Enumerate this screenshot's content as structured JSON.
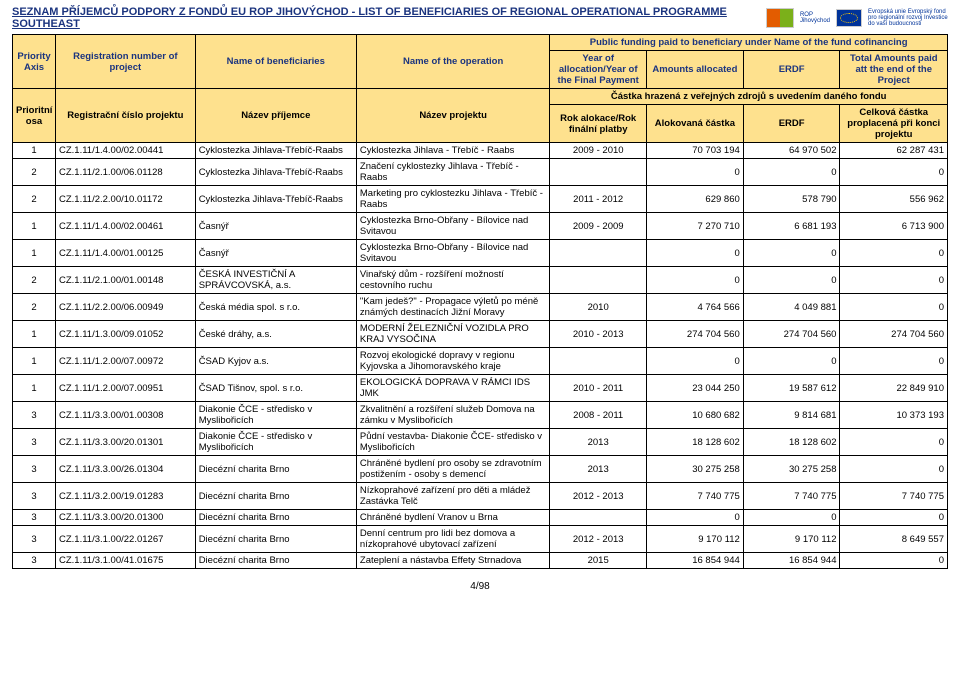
{
  "title": "SEZNAM PŘÍJEMCŮ PODPORY Z FONDŮ EU ROP JIHOVÝCHOD  -  LIST OF BENEFICIARIES OF REGIONAL OPERATIONAL PROGRAMME SOUTHEAST",
  "eu_text": "Evropská unie\nEvropský fond pro regionální rozvoj\nInvestice do vaší budoucnosti",
  "page_number": "4/98",
  "colors": {
    "header_bg": "#fee18e",
    "header_blue": "#1b347f",
    "border": "#000000",
    "text": "#000000",
    "background": "#ffffff"
  },
  "header": {
    "span_top_en": "Public funding paid to beneficiary under Name of the fund cofinancing",
    "span_top_cz": "Částka hrazená z veřejných zdrojů s uvedením daného fondu",
    "en": {
      "axis": "Priority Axis",
      "reg": "Registration number of project",
      "benef": "Name of beneficiaries",
      "oper": "Name of the operation",
      "year": "Year of allocation/Year of the Final Payment",
      "amt": "Amounts allocated",
      "erdf": "ERDF",
      "total": "Total Amounts paid att the end of the Project"
    },
    "cz": {
      "axis": "Prioritní osa",
      "reg": "Registrační číslo projektu",
      "benef": "Název příjemce",
      "oper": "Název projektu",
      "year": "Rok alokace/Rok finální platby",
      "amt": "Alokovaná částka",
      "erdf": "ERDF",
      "total": "Celková částka proplacená při konci projektu"
    }
  },
  "rows": [
    {
      "axis": "1",
      "reg": "CZ.1.11/1.4.00/02.00441",
      "benef": "Cyklostezka Jihlava-Třebíč-Raabs",
      "oper": "Cyklostezka Jihlava - Třebíč - Raabs",
      "year": "2009 - 2010",
      "amt": "70 703 194",
      "erdf": "64 970 502",
      "total": "62 287 431"
    },
    {
      "axis": "2",
      "reg": "CZ.1.11/2.1.00/06.01128",
      "benef": "Cyklostezka Jihlava-Třebíč-Raabs",
      "oper": "Značení cyklostezky Jihlava - Třebíč - Raabs",
      "year": "",
      "amt": "0",
      "erdf": "0",
      "total": "0"
    },
    {
      "axis": "2",
      "reg": "CZ.1.11/2.2.00/10.01172",
      "benef": "Cyklostezka Jihlava-Třebíč-Raabs",
      "oper": "Marketing pro cyklostezku Jihlava - Třebíč - Raabs",
      "year": "2011 - 2012",
      "amt": "629 860",
      "erdf": "578 790",
      "total": "556 962"
    },
    {
      "axis": "1",
      "reg": "CZ.1.11/1.4.00/02.00461",
      "benef": "Časnýř",
      "oper": "Cyklostezka Brno-Obřany - Bílovice nad Svitavou",
      "year": "2009 - 2009",
      "amt": "7 270 710",
      "erdf": "6 681 193",
      "total": "6 713 900"
    },
    {
      "axis": "1",
      "reg": "CZ.1.11/1.4.00/01.00125",
      "benef": "Časnýř",
      "oper": "Cyklostezka Brno-Obřany - Bílovice nad Svitavou",
      "year": "",
      "amt": "0",
      "erdf": "0",
      "total": "0"
    },
    {
      "axis": "2",
      "reg": "CZ.1.11/2.1.00/01.00148",
      "benef": "ČESKÁ INVESTIČNÍ A SPRÁVCOVSKÁ, a.s.",
      "oper": "Vinařský dům - rozšíření možností cestovního ruchu",
      "year": "",
      "amt": "0",
      "erdf": "0",
      "total": "0"
    },
    {
      "axis": "2",
      "reg": "CZ.1.11/2.2.00/06.00949",
      "benef": "Česká média spol. s r.o.",
      "oper": "\"Kam jedeš?\" - Propagace výletů po méně známých destinacích Jižní Moravy",
      "year": "2010",
      "amt": "4 764 566",
      "erdf": "4 049 881",
      "total": "0"
    },
    {
      "axis": "1",
      "reg": "CZ.1.11/1.3.00/09.01052",
      "benef": "České dráhy, a.s.",
      "oper": "MODERNÍ ŽELEZNIČNÍ VOZIDLA PRO KRAJ VYSOČINA",
      "year": "2010 - 2013",
      "amt": "274 704 560",
      "erdf": "274 704 560",
      "total": "274 704 560"
    },
    {
      "axis": "1",
      "reg": "CZ.1.11/1.2.00/07.00972",
      "benef": "ČSAD Kyjov a.s.",
      "oper": "Rozvoj ekologické dopravy v regionu Kyjovska a Jihomoravského kraje",
      "year": "",
      "amt": "0",
      "erdf": "0",
      "total": "0"
    },
    {
      "axis": "1",
      "reg": "CZ.1.11/1.2.00/07.00951",
      "benef": "ČSAD Tišnov, spol. s r.o.",
      "oper": "EKOLOGICKÁ DOPRAVA V RÁMCI IDS JMK",
      "year": "2010 - 2011",
      "amt": "23 044 250",
      "erdf": "19 587 612",
      "total": "22 849 910"
    },
    {
      "axis": "3",
      "reg": "CZ.1.11/3.3.00/01.00308",
      "benef": "Diakonie ČCE - středisko v Myslibořicích",
      "oper": "Zkvalitnění a rozšíření služeb Domova na zámku v Myslibořicích",
      "year": "2008 - 2011",
      "amt": "10 680 682",
      "erdf": "9 814 681",
      "total": "10 373 193"
    },
    {
      "axis": "3",
      "reg": "CZ.1.11/3.3.00/20.01301",
      "benef": "Diakonie ČCE - středisko v Myslibořicích",
      "oper": "Půdní vestavba- Diakonie ČCE- středisko v Myslibořicích",
      "year": "2013",
      "amt": "18 128 602",
      "erdf": "18 128 602",
      "total": "0"
    },
    {
      "axis": "3",
      "reg": "CZ.1.11/3.3.00/26.01304",
      "benef": "Diecézní charita Brno",
      "oper": "Chráněné bydlení pro osoby se zdravotním postižením - osoby s demencí",
      "year": "2013",
      "amt": "30 275 258",
      "erdf": "30 275 258",
      "total": "0"
    },
    {
      "axis": "3",
      "reg": "CZ.1.11/3.2.00/19.01283",
      "benef": "Diecézní charita Brno",
      "oper": "Nízkoprahové zařízení pro děti a mládež Zastávka Telč",
      "year": "2012 - 2013",
      "amt": "7 740 775",
      "erdf": "7 740 775",
      "total": "7 740 775"
    },
    {
      "axis": "3",
      "reg": "CZ.1.11/3.3.00/20.01300",
      "benef": "Diecézní charita Brno",
      "oper": "Chráněné bydlení Vranov u Brna",
      "year": "",
      "amt": "0",
      "erdf": "0",
      "total": "0"
    },
    {
      "axis": "3",
      "reg": "CZ.1.11/3.1.00/22.01267",
      "benef": "Diecézní charita Brno",
      "oper": "Denní centrum pro lidi bez domova a nízkoprahové ubytovací zařízení",
      "year": "2012 - 2013",
      "amt": "9 170 112",
      "erdf": "9 170 112",
      "total": "8 649 557"
    },
    {
      "axis": "3",
      "reg": "CZ.1.11/3.1.00/41.01675",
      "benef": "Diecézní charita Brno",
      "oper": "Zateplení a nástavba Effety Strnadova",
      "year": "2015",
      "amt": "16 854 944",
      "erdf": "16 854 944",
      "total": "0"
    }
  ]
}
